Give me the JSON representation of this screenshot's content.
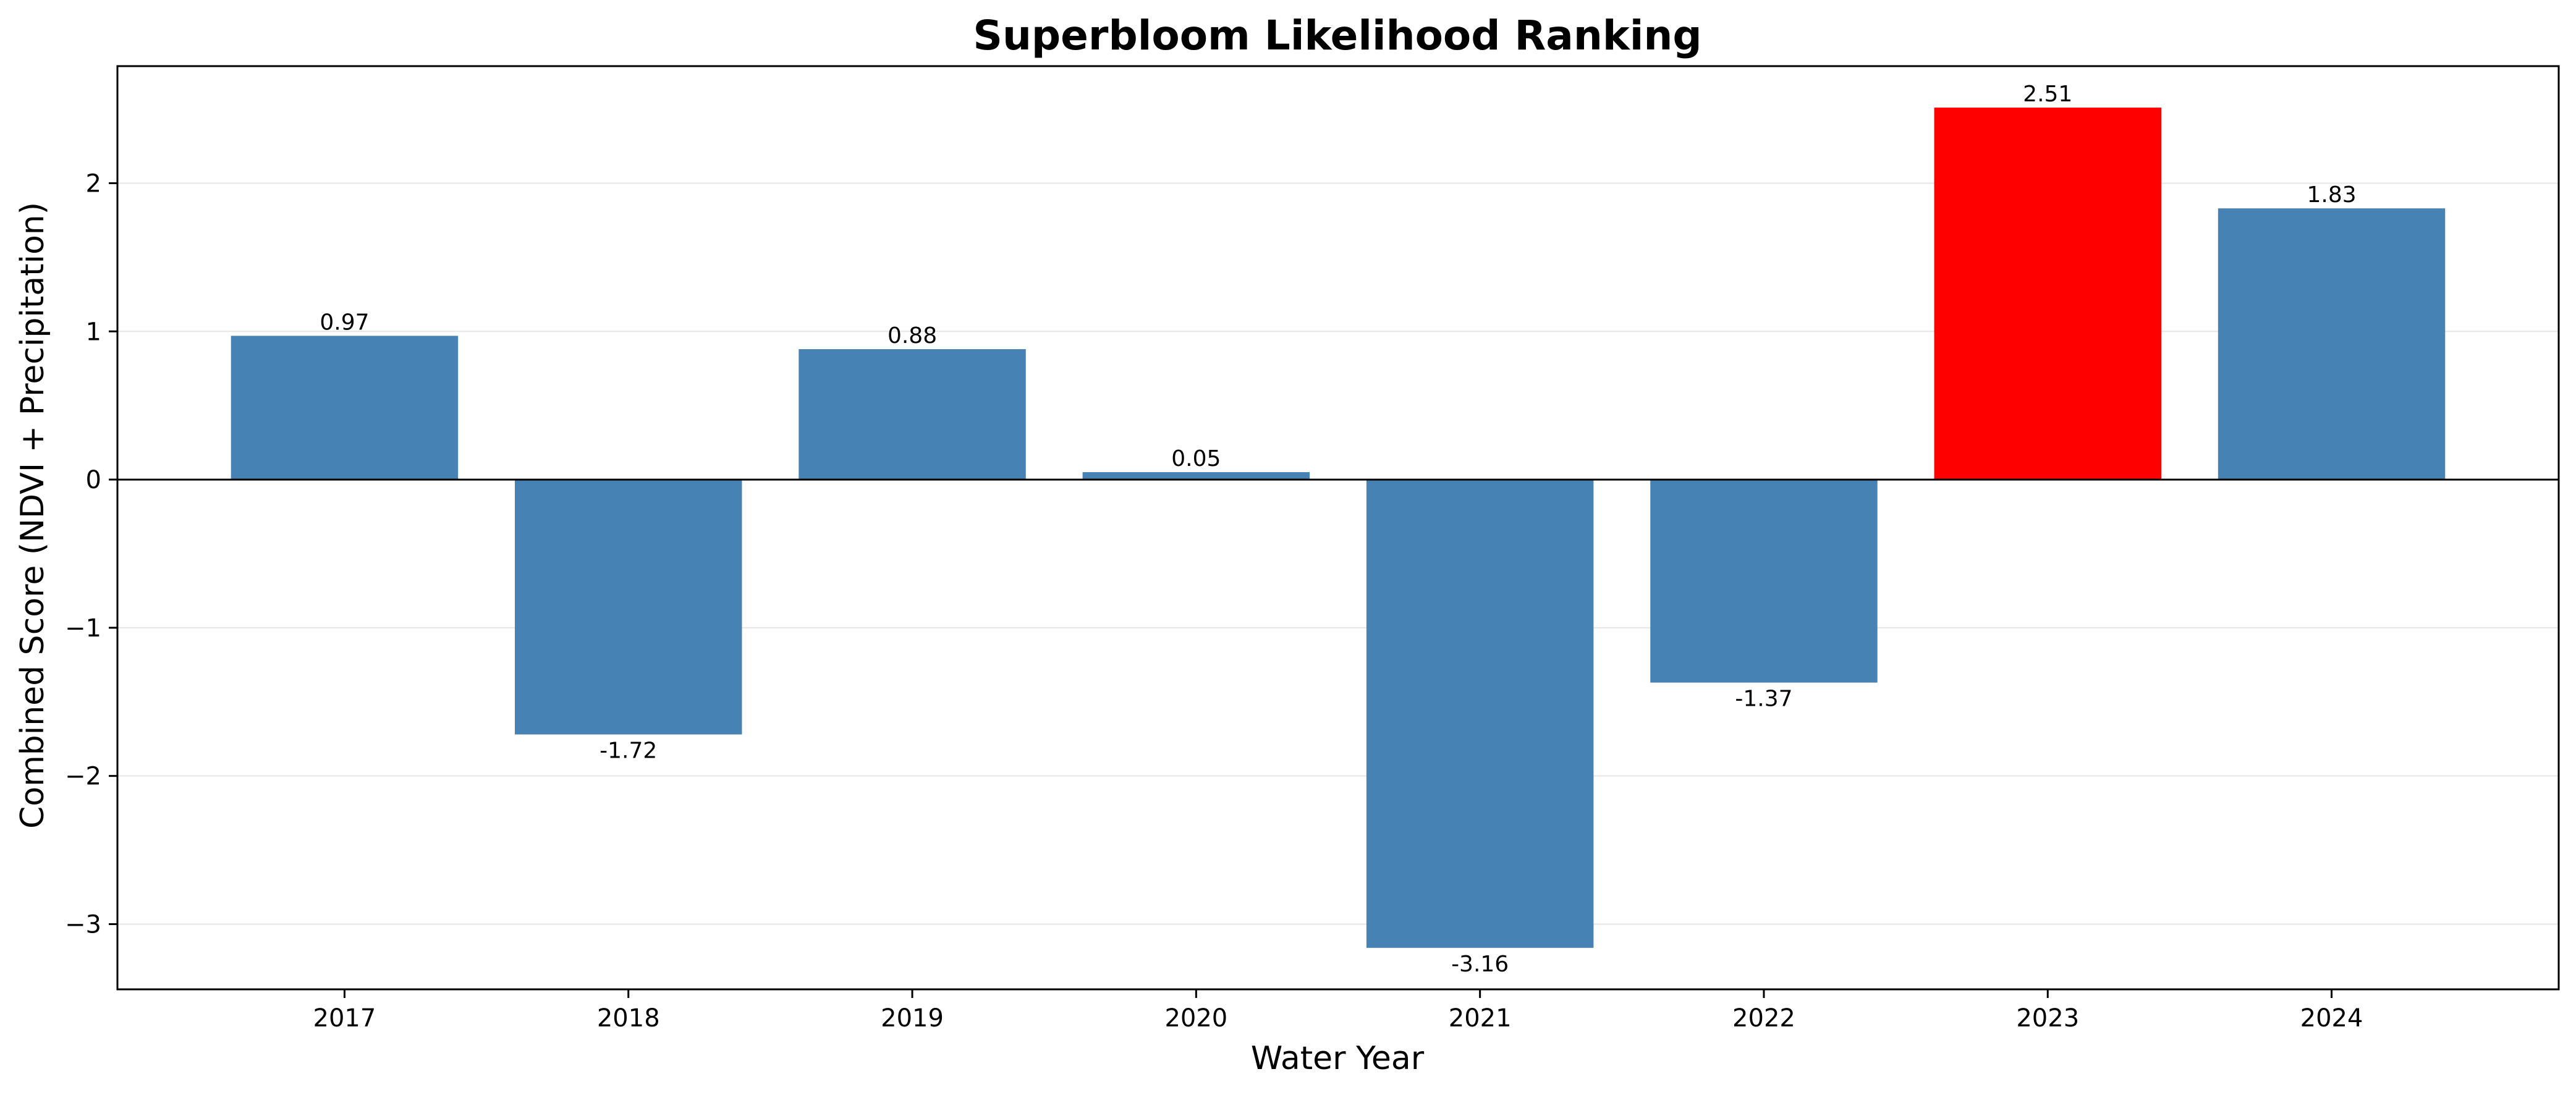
{
  "chart_data": {
    "type": "bar",
    "title": "Superbloom Likelihood Ranking",
    "xlabel": "Water Year",
    "ylabel": "Combined Score (NDVI + Precipitation)",
    "categories": [
      "2017",
      "2018",
      "2019",
      "2020",
      "2021",
      "2022",
      "2023",
      "2024"
    ],
    "values": [
      0.97,
      -1.72,
      0.88,
      0.05,
      -3.16,
      -1.37,
      2.51,
      1.83
    ],
    "value_labels": [
      "0.97",
      "-1.72",
      "0.88",
      "0.05",
      "-3.16",
      "-1.37",
      "2.51",
      "1.83"
    ],
    "highlight_category": "2023",
    "colors": {
      "default": "#4682b4",
      "highlight": "#ff0000",
      "grid": "#e6e6e6",
      "zero_line": "#000000"
    },
    "ylim": [
      -3.44,
      2.79
    ],
    "yticks": [
      -3,
      -2,
      -1,
      0,
      1,
      2
    ],
    "ytick_labels": [
      "−3",
      "−2",
      "−1",
      "0",
      "1",
      "2"
    ],
    "grid": "y",
    "legend": "none"
  }
}
